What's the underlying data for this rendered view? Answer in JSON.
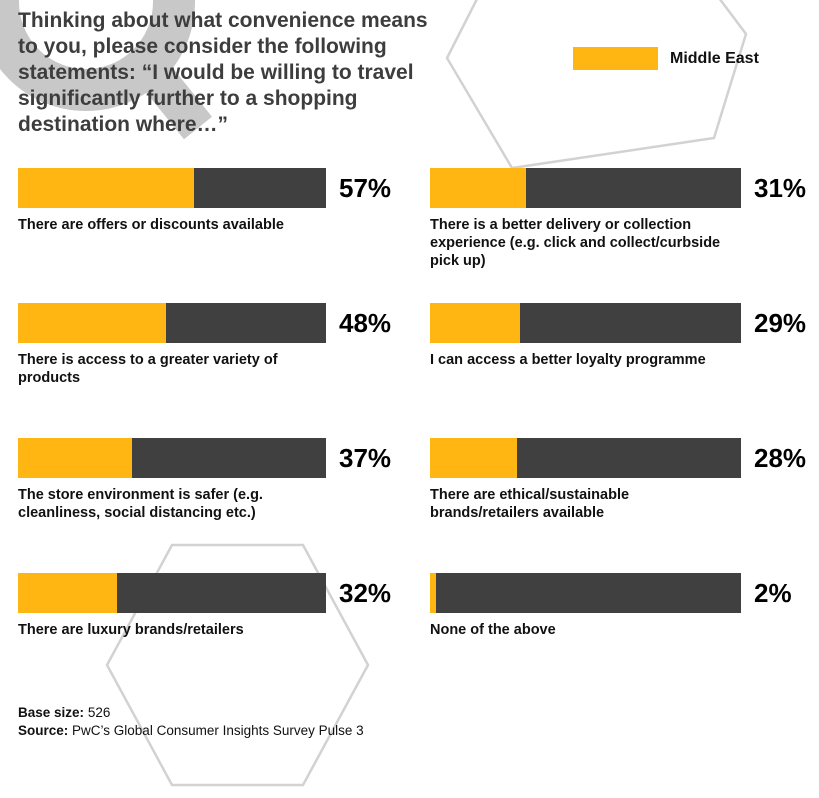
{
  "title": "Thinking about what convenience means to you, please consider the following statements: “I would be willing to travel significantly further to a shopping destination where…”",
  "legend": {
    "label": "Middle East"
  },
  "colors": {
    "accent": "#FFB612",
    "bar_dark": "#404041",
    "deco_stroke": "#d2d2d2",
    "watermark": "#c8c8c8"
  },
  "footer": {
    "base_label": "Base size:",
    "base_value": "526",
    "source_label": "Source:",
    "source_value": "PwC’s Global Consumer Insights Survey Pulse 3"
  },
  "chart_data": {
    "type": "bar",
    "orientation": "horizontal",
    "unit": "%",
    "xlim": [
      0,
      100
    ],
    "legend": [
      "Middle East"
    ],
    "legend_position": "top-right",
    "title": "Thinking about what convenience means to you, please consider the following statements: “I would be willing to travel significantly further to a shopping destination where…”",
    "items": [
      {
        "label": "There are offers or discounts available",
        "value": 57,
        "column": "left"
      },
      {
        "label": "There is access to a greater variety of products",
        "value": 48,
        "column": "left"
      },
      {
        "label": "The store environment is safer (e.g. cleanliness, social distancing etc.)",
        "value": 37,
        "column": "left"
      },
      {
        "label": "There are luxury brands/retailers",
        "value": 32,
        "column": "left"
      },
      {
        "label": "There is a better delivery or collection experience (e.g. click and collect/curbside pick up)",
        "value": 31,
        "column": "right"
      },
      {
        "label": "I can access a better loyalty programme",
        "value": 29,
        "column": "right"
      },
      {
        "label": "There are ethical/sustainable brands/retailers available",
        "value": 28,
        "column": "right"
      },
      {
        "label": "None of the above",
        "value": 2,
        "column": "right"
      }
    ]
  }
}
